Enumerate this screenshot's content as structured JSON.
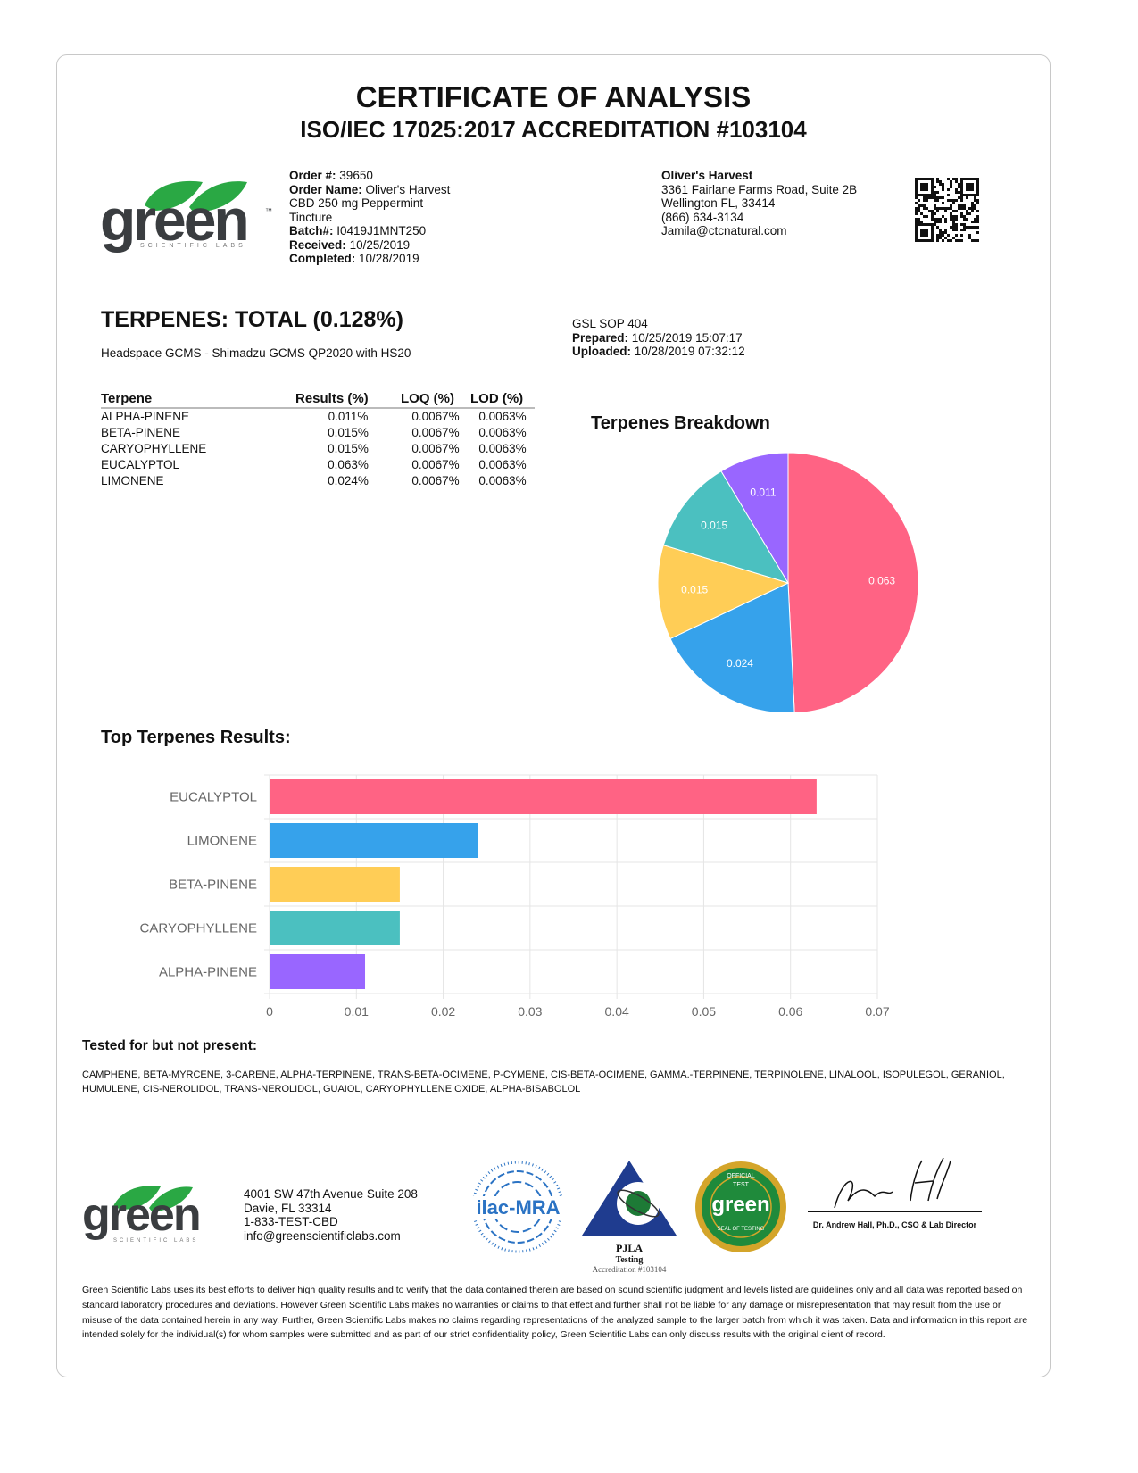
{
  "header": {
    "title": "CERTIFICATE OF ANALYSIS",
    "subtitle": "ISO/IEC 17025:2017 ACCREDITATION #103104"
  },
  "logo": {
    "text": "green",
    "tagline": "SCIENTIFIC LABS",
    "tm": "™",
    "colors": {
      "leaf": "#2aa844",
      "text": "#3a3d40"
    }
  },
  "order": {
    "order_no_label": "Order #:",
    "order_no": "39650",
    "order_name_label": "Order Name:",
    "order_name": "Oliver's Harvest",
    "order_name_2": "CBD 250 mg Peppermint",
    "order_name_3": "Tincture",
    "batch_label": "Batch#:",
    "batch": "I0419J1MNT250",
    "received_label": "Received:",
    "received": "10/25/2019",
    "completed_label": "Completed:",
    "completed": "10/28/2019"
  },
  "client": {
    "name": "Oliver's Harvest",
    "address1": "3361 Fairlane Farms Road, Suite 2B",
    "address2": "Wellington FL, 33414",
    "phone": "(866) 634-3134",
    "email": "Jamila@ctcnatural.com"
  },
  "terpenes": {
    "title": "TERPENES: TOTAL (0.128%)",
    "method": "Headspace GCMS - Shimadzu GCMS QP2020 with HS20",
    "sop": "GSL SOP 404",
    "prepared_label": "Prepared:",
    "prepared": "10/25/2019 15:07:17",
    "uploaded_label": "Uploaded:",
    "uploaded": "10/28/2019 07:32:12",
    "columns": [
      "Terpene",
      "Results (%)",
      "LOQ (%)",
      "LOD (%)"
    ],
    "rows": [
      {
        "name": "ALPHA-PINENE",
        "result": "0.011%",
        "loq": "0.0067%",
        "lod": "0.0063%"
      },
      {
        "name": "BETA-PINENE",
        "result": "0.015%",
        "loq": "0.0067%",
        "lod": "0.0063%"
      },
      {
        "name": "CARYOPHYLLENE",
        "result": "0.015%",
        "loq": "0.0067%",
        "lod": "0.0063%"
      },
      {
        "name": "EUCALYPTOL",
        "result": "0.063%",
        "loq": "0.0067%",
        "lod": "0.0063%"
      },
      {
        "name": "LIMONENE",
        "result": "0.024%",
        "loq": "0.0067%",
        "lod": "0.0063%"
      }
    ]
  },
  "chart_data": [
    {
      "type": "pie",
      "title": "Terpenes Breakdown",
      "slices": [
        {
          "label": "EUCALYPTOL",
          "value": 0.063,
          "color": "#ff6384"
        },
        {
          "label": "LIMONENE",
          "value": 0.024,
          "color": "#36a2eb"
        },
        {
          "label": "BETA-PINENE",
          "value": 0.015,
          "color": "#ffcd56"
        },
        {
          "label": "CARYOPHYLLENE",
          "value": 0.015,
          "color": "#4bc0c0"
        },
        {
          "label": "ALPHA-PINENE",
          "value": 0.011,
          "color": "#9966ff"
        }
      ],
      "data_labels": [
        "0.063",
        "0.024",
        "0.015",
        "0.015",
        "0.011"
      ]
    },
    {
      "type": "bar",
      "orientation": "horizontal",
      "title": "Top Terpenes Results:",
      "categories": [
        "EUCALYPTOL",
        "LIMONENE",
        "BETA-PINENE",
        "CARYOPHYLLENE",
        "ALPHA-PINENE"
      ],
      "values": [
        0.063,
        0.024,
        0.015,
        0.015,
        0.011
      ],
      "colors": [
        "#ff6384",
        "#36a2eb",
        "#ffcd56",
        "#4bc0c0",
        "#9966ff"
      ],
      "xlim": [
        0,
        0.07
      ],
      "xticks": [
        "0",
        "0.01",
        "0.02",
        "0.03",
        "0.04",
        "0.05",
        "0.06",
        "0.07"
      ],
      "grid": true
    }
  ],
  "not_present": {
    "title": "Tested for but not present:",
    "list": "CAMPHENE, BETA-MYRCENE, 3-CARENE, ALPHA-TERPINENE, TRANS-BETA-OCIMENE, P-CYMENE, CIS-BETA-OCIMENE, GAMMA.-TERPINENE, TERPINOLENE, LINALOOL, ISOPULEGOL, GERANIOL, HUMULENE, CIS-NEROLIDOL, TRANS-NEROLIDOL, GUAIOL, CARYOPHYLLENE OXIDE, ALPHA-BISABOLOL"
  },
  "footer": {
    "address1": "4001 SW 47th Avenue Suite 208",
    "address2": "Davie, FL 33314",
    "phone": "1-833-TEST-CBD",
    "email": "info@greenscientificlabs.com",
    "ilac": "ilac-MRA",
    "pjla": "PJLA",
    "pjla_testing": "Testing",
    "pjla_accreditation": "Accreditation #103104",
    "seal_top": "OFFICIAL",
    "seal_test": "TEST",
    "seal_bottom": "SEAL OF TESTING",
    "signer": "Dr. Andrew Hall, Ph.D., CSO & Lab Director",
    "disclaimer": "Green Scientific Labs uses its best efforts to deliver high quality results and to verify that the data contained therein are based on sound scientific judgment and levels listed are guidelines only and all data was reported based on standard laboratory procedures and deviations. However Green Scientific Labs makes no warranties or claims to that effect and further shall not be liable for any damage or misrepresentation that may result from the use or misuse of the data contained herein in any way. Further, Green Scientific Labs makes no claims regarding representations of the analyzed sample to the larger batch from which it was taken. Data and information in this report are intended solely for the individual(s) for whom samples were submitted and as part of our strict confidentiality policy, Green Scientific Labs can only discuss results with the original client of record."
  }
}
